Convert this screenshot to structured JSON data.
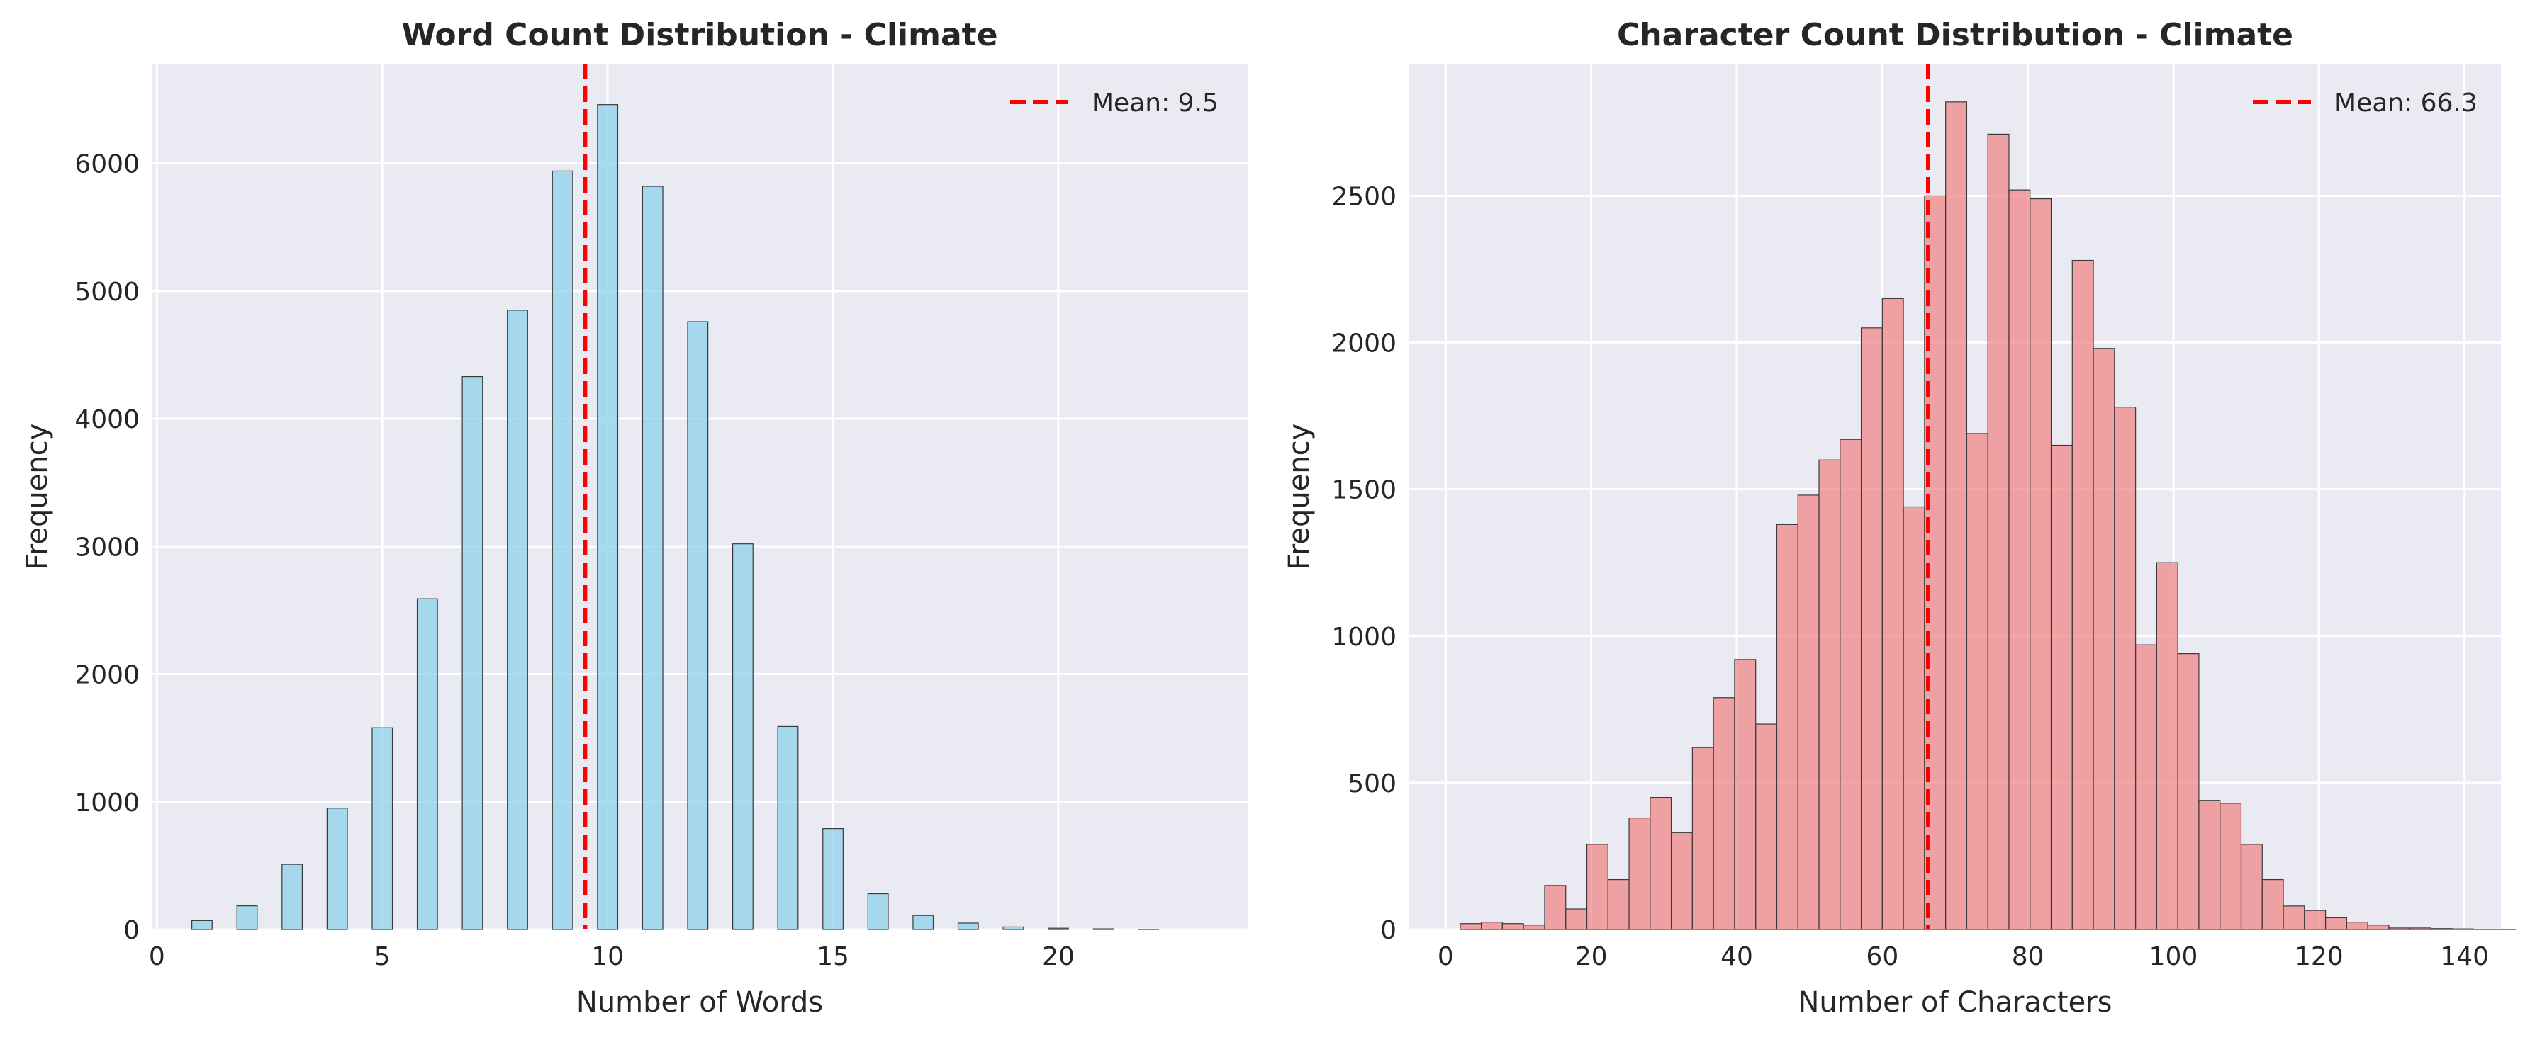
{
  "colors": {
    "plot_bg": "#EAEAF2",
    "grid": "#FFFFFF",
    "mean_line": "#FF0000",
    "bar_edge": "#3A3A3A",
    "left_bar": "#87CEEB",
    "right_bar": "#F08080"
  },
  "chart_data": [
    {
      "type": "bar",
      "title": "Word Count Distribution - Climate",
      "xlabel": "Number of Words",
      "ylabel": "Frequency",
      "xlim": [
        -0.1,
        24.2
      ],
      "ylim": [
        0,
        6780
      ],
      "xticks": [
        0,
        5,
        10,
        15,
        20
      ],
      "xtick_labels": [
        "0",
        "5",
        "10",
        "15",
        "20"
      ],
      "yticks": [
        0,
        1000,
        2000,
        3000,
        4000,
        5000,
        6000
      ],
      "ytick_labels": [
        "0",
        "1000",
        "2000",
        "3000",
        "4000",
        "5000",
        "6000"
      ],
      "bar_width": 0.45,
      "bars": [
        {
          "x": 1,
          "value": 70
        },
        {
          "x": 2,
          "value": 185
        },
        {
          "x": 3,
          "value": 510
        },
        {
          "x": 4,
          "value": 950
        },
        {
          "x": 5,
          "value": 1580
        },
        {
          "x": 6,
          "value": 2590
        },
        {
          "x": 7,
          "value": 4330
        },
        {
          "x": 8,
          "value": 4850
        },
        {
          "x": 9,
          "value": 5940
        },
        {
          "x": 10,
          "value": 6460
        },
        {
          "x": 11,
          "value": 5820
        },
        {
          "x": 12,
          "value": 4760
        },
        {
          "x": 13,
          "value": 3020
        },
        {
          "x": 14,
          "value": 1590
        },
        {
          "x": 15,
          "value": 790
        },
        {
          "x": 16,
          "value": 280
        },
        {
          "x": 17,
          "value": 110
        },
        {
          "x": 18,
          "value": 50
        },
        {
          "x": 19,
          "value": 20
        },
        {
          "x": 20,
          "value": 10
        },
        {
          "x": 21,
          "value": 5
        },
        {
          "x": 22,
          "value": 2
        }
      ],
      "mean": 9.5,
      "legend": {
        "label": "Mean: 9.5",
        "location": "upper right"
      },
      "grid": true
    },
    {
      "type": "bar",
      "title": "Character Count Distribution - Climate",
      "xlabel": "Number of Characters",
      "ylabel": "Frequency",
      "xlim": [
        -5,
        145
      ],
      "ylim": [
        0,
        2950
      ],
      "xticks": [
        0,
        20,
        40,
        60,
        80,
        100,
        120,
        140
      ],
      "xtick_labels": [
        "0",
        "20",
        "40",
        "60",
        "80",
        "100",
        "120",
        "140"
      ],
      "yticks": [
        0,
        500,
        1000,
        1500,
        2000,
        2500
      ],
      "ytick_labels": [
        "0",
        "500",
        "1000",
        "1500",
        "2000",
        "2500"
      ],
      "bin_start": 2,
      "bin_width": 2.9,
      "values": [
        20,
        25,
        20,
        15,
        150,
        70,
        290,
        170,
        380,
        450,
        330,
        620,
        790,
        920,
        700,
        1380,
        1480,
        1600,
        1670,
        2050,
        2150,
        1440,
        2500,
        2820,
        1690,
        2710,
        2520,
        2490,
        1650,
        2280,
        1980,
        1780,
        970,
        1250,
        940,
        440,
        430,
        290,
        170,
        80,
        65,
        40,
        25,
        15,
        5,
        5,
        3,
        2,
        1,
        1
      ],
      "mean": 66.3,
      "legend": {
        "label": "Mean: 66.3",
        "location": "upper right"
      },
      "grid": true
    }
  ]
}
